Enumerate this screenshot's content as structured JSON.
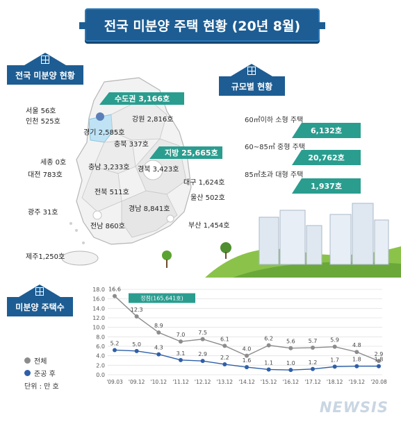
{
  "title": "전국 미분양 주택 현황 (20년 8월)",
  "sections": {
    "national": "전국 미분양 현황",
    "by_size": "규모별 현황",
    "count": "미분양 주택수"
  },
  "regions": {
    "capital_area": "수도권 3,166호",
    "provinces": "지방 25,665호",
    "seoul": "서울  56호",
    "incheon": "인천 525호",
    "gangwon": "강원 2,816호",
    "gyeonggi": "경기 2,585호",
    "chungbuk": "충북 337호",
    "sejong": "세종 0호",
    "chungnam": "충남 3,233호",
    "daejeon": "대전 783호",
    "gyeongbuk": "경북 3,423호",
    "daegu": "대구 1,624호",
    "jeonbuk": "전북 511호",
    "ulsan": "울산 502호",
    "gwangju": "광주 31호",
    "gyeongnam": "경남 8,841호",
    "jeonnam": "전남 860호",
    "busan": "부산 1,454호",
    "jeju": "제주1,250호"
  },
  "size_breakdown": [
    {
      "label": "60㎡이하 소형 주택",
      "value": "6,132호"
    },
    {
      "label": "60~85㎡ 중형 주택",
      "value": "20,762호"
    },
    {
      "label": "85㎡초과 대형 주택",
      "value": "1,937호"
    }
  ],
  "colors": {
    "navy": "#1d5d93",
    "teal": "#2a9d8f",
    "total_series": "#8c8c8c",
    "completed_series": "#2f5fa8"
  },
  "chart_data": {
    "type": "line",
    "categories": [
      "'09.03",
      "'09.12",
      "'10.12",
      "'11.12",
      "'12.12",
      "'13.12",
      "'14.12",
      "'15.12",
      "'16.12",
      "'17.12",
      "'18.12",
      "'19.12",
      "'20.08"
    ],
    "series": [
      {
        "name": "전체",
        "values": [
          16.6,
          12.3,
          8.9,
          7.0,
          7.5,
          6.1,
          4.0,
          6.2,
          5.6,
          5.7,
          5.9,
          4.8,
          2.9
        ]
      },
      {
        "name": "준공 후",
        "values": [
          5.2,
          5.0,
          4.3,
          3.1,
          2.9,
          2.2,
          1.6,
          1.1,
          1.0,
          1.2,
          1.7,
          1.8,
          1.8
        ]
      }
    ],
    "ylim": [
      0,
      18
    ],
    "yticks": [
      "0.0",
      "2.0",
      "4.0",
      "6.0",
      "8.0",
      "10.0",
      "12.0",
      "14.0",
      "16.0",
      "18.0"
    ],
    "total_labels": [
      "16.6",
      "12.3",
      "8.9",
      "7.0",
      "7.5",
      "6.1",
      "4.0",
      "6.2",
      "5.6",
      "5.7",
      "5.9",
      "4.8",
      "2.9"
    ],
    "completed_labels": [
      "5.2",
      "5.0",
      "4.3",
      "3.1",
      "2.9",
      "2.2",
      "1.6",
      "1.1",
      "1.0",
      "1.2",
      "1.7",
      "1.8",
      "1.8"
    ],
    "peak_annotation": "정점(165,641호)",
    "unit": "단위 : 만 호",
    "grid": true
  },
  "watermark": "NEWSIS"
}
